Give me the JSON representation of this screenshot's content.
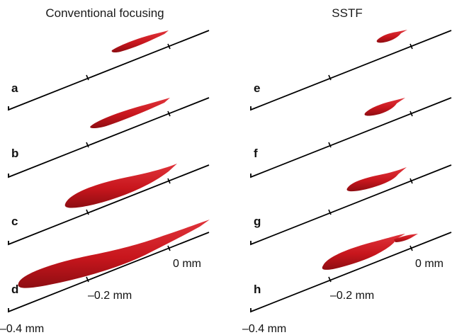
{
  "columns": {
    "left_title": "Conventional focusing",
    "right_title": "SSTF"
  },
  "colors": {
    "volume_fill": "#c8161d",
    "volume_shade": "#8e0d12",
    "volume_highlight": "#e8474d",
    "axis": "#000000"
  },
  "panels": {
    "a": "a",
    "b": "b",
    "c": "c",
    "d": "d",
    "e": "e",
    "f": "f",
    "g": "g",
    "h": "h"
  },
  "scale": {
    "zero": "0 mm",
    "mid": "–0.2 mm",
    "far": "–0.4 mm"
  }
}
